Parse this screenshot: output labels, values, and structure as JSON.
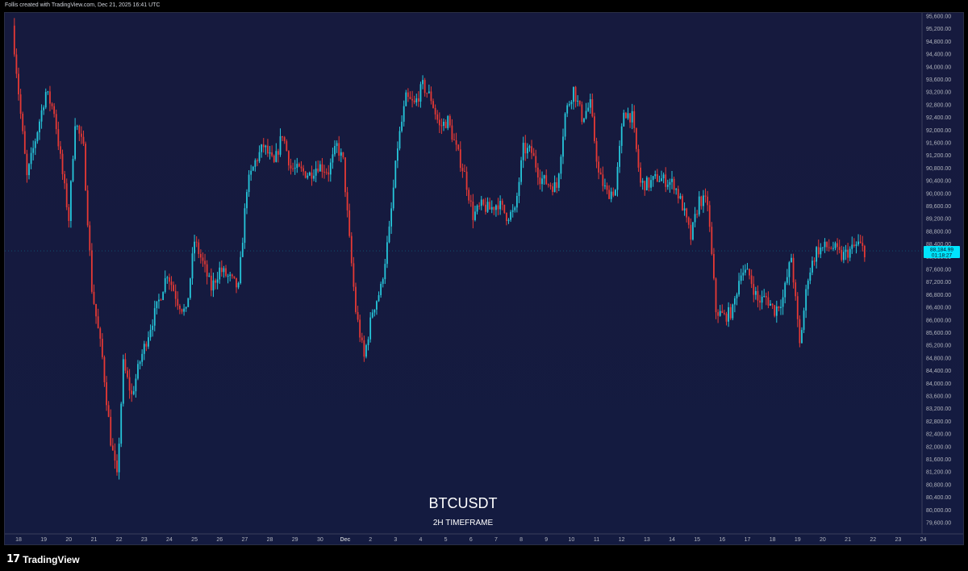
{
  "header": {
    "caption": "Follis created with TradingView.com, Dec 21, 2025 16:41 UTC"
  },
  "footer": {
    "brand": "TradingView",
    "brand_mark": "17"
  },
  "colors": {
    "bull": "#26c6da",
    "bear": "#e53935",
    "background": "#161a3e",
    "price_label": "#00e5ff"
  },
  "chart_data": {
    "type": "candlestick",
    "symbol": "BTCUSDT",
    "timeframe_label": "2H TIMEFRAME",
    "ylim": [
      79500,
      95900
    ],
    "y_ticks": [
      "95,600.00",
      "95,200.00",
      "94,800.00",
      "94,400.00",
      "94,000.00",
      "93,600.00",
      "93,200.00",
      "92,800.00",
      "92,400.00",
      "92,000.00",
      "91,600.00",
      "91,200.00",
      "90,800.00",
      "90,400.00",
      "90,000.00",
      "89,600.00",
      "89,200.00",
      "88,800.00",
      "88,400.00",
      "88,000.00",
      "87,600.00",
      "87,200.00",
      "86,800.00",
      "86,400.00",
      "86,000.00",
      "85,600.00",
      "85,200.00",
      "84,800.00",
      "84,400.00",
      "84,000.00",
      "83,600.00",
      "83,200.00",
      "82,800.00",
      "82,400.00",
      "82,000.00",
      "81,600.00",
      "81,200.00",
      "80,800.00",
      "80,400.00",
      "80,000.00",
      "79,600.00"
    ],
    "x_ticks": [
      "18",
      "19",
      "20",
      "21",
      "22",
      "23",
      "24",
      "25",
      "26",
      "27",
      "28",
      "29",
      "30",
      "Dec",
      "2",
      "3",
      "4",
      "5",
      "6",
      "7",
      "8",
      "9",
      "10",
      "11",
      "12",
      "13",
      "14",
      "15",
      "16",
      "17",
      "18",
      "19",
      "20",
      "21",
      "22",
      "23",
      "24"
    ],
    "x_tick_dates": [
      "Nov 18",
      "Nov 19",
      "Nov 20",
      "Nov 21",
      "Nov 22",
      "Nov 23",
      "Nov 24",
      "Nov 25",
      "Nov 26",
      "Nov 27",
      "Nov 28",
      "Nov 29",
      "Nov 30",
      "Dec 1",
      "Dec 2",
      "Dec 3",
      "Dec 4",
      "Dec 5",
      "Dec 6",
      "Dec 7",
      "Dec 8",
      "Dec 9",
      "Dec 10",
      "Dec 11",
      "Dec 12",
      "Dec 13",
      "Dec 14",
      "Dec 15",
      "Dec 16",
      "Dec 17",
      "Dec 18",
      "Dec 19",
      "Dec 20",
      "Dec 21",
      "Dec 22",
      "Dec 23",
      "Dec 24"
    ],
    "last_price": "88,184.99",
    "countdown": "01:18:27",
    "close_path": [
      [
        "Nov 17 18:00",
        95300
      ],
      [
        "Nov 18 02:00",
        92500
      ],
      [
        "Nov 18 08:00",
        90500
      ],
      [
        "Nov 18 16:00",
        91700
      ],
      [
        "Nov 19 02:00",
        93200
      ],
      [
        "Nov 19 10:00",
        92600
      ],
      [
        "Nov 19 18:00",
        90600
      ],
      [
        "Nov 20 00:00",
        89200
      ],
      [
        "Nov 20 06:00",
        92300
      ],
      [
        "Nov 20 14:00",
        91400
      ],
      [
        "Nov 20 22:00",
        87000
      ],
      [
        "Nov 21 08:00",
        84800
      ],
      [
        "Nov 21 16:00",
        82200
      ],
      [
        "Nov 21 22:00",
        81000
      ],
      [
        "Nov 22 04:00",
        84600
      ],
      [
        "Nov 22 12:00",
        83600
      ],
      [
        "Nov 22 20:00",
        84700
      ],
      [
        "Nov 23 06:00",
        85800
      ],
      [
        "Nov 23 14:00",
        86600
      ],
      [
        "Nov 23 22:00",
        87500
      ],
      [
        "Nov 24 08:00",
        86600
      ],
      [
        "Nov 24 16:00",
        86200
      ],
      [
        "Nov 25 00:00",
        88500
      ],
      [
        "Nov 25 08:00",
        87800
      ],
      [
        "Nov 25 16:00",
        87000
      ],
      [
        "Nov 26 00:00",
        87600
      ],
      [
        "Nov 26 10:00",
        87300
      ],
      [
        "Nov 26 18:00",
        87000
      ],
      [
        "Nov 27 02:00",
        90200
      ],
      [
        "Nov 27 10:00",
        91000
      ],
      [
        "Nov 27 18:00",
        91500
      ],
      [
        "Nov 28 04:00",
        90900
      ],
      [
        "Nov 28 12:00",
        91900
      ],
      [
        "Nov 28 20:00",
        90800
      ],
      [
        "Nov 29 06:00",
        90700
      ],
      [
        "Nov 29 14:00",
        90600
      ],
      [
        "Nov 29 22:00",
        90900
      ],
      [
        "Nov 30 08:00",
        90700
      ],
      [
        "Nov 30 16:00",
        91500
      ],
      [
        "Nov 30 22:00",
        91000
      ],
      [
        "Dec 1 04:00",
        88500
      ],
      [
        "Dec 1 10:00",
        86300
      ],
      [
        "Dec 1 18:00",
        84800
      ],
      [
        "Dec 2 02:00",
        86300
      ],
      [
        "Dec 2 10:00",
        87000
      ],
      [
        "Dec 2 18:00",
        88800
      ],
      [
        "Dec 3 02:00",
        91500
      ],
      [
        "Dec 3 10:00",
        93000
      ],
      [
        "Dec 3 18:00",
        92800
      ],
      [
        "Dec 4 02:00",
        93400
      ],
      [
        "Dec 4 10:00",
        93000
      ],
      [
        "Dec 4 18:00",
        92100
      ],
      [
        "Dec 5 02:00",
        92300
      ],
      [
        "Dec 5 10:00",
        91400
      ],
      [
        "Dec 5 18:00",
        90600
      ],
      [
        "Dec 6 02:00",
        89300
      ],
      [
        "Dec 6 10:00",
        89600
      ],
      [
        "Dec 6 18:00",
        89500
      ],
      [
        "Dec 7 02:00",
        89700
      ],
      [
        "Dec 7 10:00",
        89300
      ],
      [
        "Dec 7 18:00",
        89400
      ],
      [
        "Dec 8 02:00",
        91400
      ],
      [
        "Dec 8 10:00",
        91300
      ],
      [
        "Dec 8 18:00",
        90500
      ],
      [
        "Dec 9 02:00",
        90300
      ],
      [
        "Dec 9 10:00",
        90200
      ],
      [
        "Dec 9 18:00",
        92500
      ],
      [
        "Dec 10 02:00",
        93300
      ],
      [
        "Dec 10 10:00",
        92400
      ],
      [
        "Dec 10 18:00",
        92800
      ],
      [
        "Dec 11 02:00",
        90600
      ],
      [
        "Dec 11 10:00",
        90000
      ],
      [
        "Dec 11 18:00",
        90100
      ],
      [
        "Dec 12 02:00",
        92600
      ],
      [
        "Dec 12 10:00",
        92400
      ],
      [
        "Dec 12 18:00",
        90300
      ],
      [
        "Dec 13 02:00",
        90300
      ],
      [
        "Dec 13 10:00",
        90500
      ],
      [
        "Dec 13 18:00",
        90400
      ],
      [
        "Dec 14 02:00",
        90300
      ],
      [
        "Dec 14 10:00",
        89600
      ],
      [
        "Dec 14 18:00",
        88600
      ],
      [
        "Dec 15 02:00",
        89800
      ],
      [
        "Dec 15 10:00",
        89700
      ],
      [
        "Dec 15 18:00",
        86300
      ],
      [
        "Dec 16 02:00",
        86100
      ],
      [
        "Dec 16 10:00",
        86300
      ],
      [
        "Dec 16 18:00",
        87600
      ],
      [
        "Dec 17 02:00",
        87400
      ],
      [
        "Dec 17 10:00",
        86600
      ],
      [
        "Dec 17 18:00",
        86700
      ],
      [
        "Dec 18 02:00",
        86300
      ],
      [
        "Dec 18 10:00",
        86700
      ],
      [
        "Dec 18 18:00",
        88000
      ],
      [
        "Dec 19 02:00",
        85200
      ],
      [
        "Dec 19 10:00",
        87400
      ],
      [
        "Dec 19 18:00",
        88200
      ],
      [
        "Dec 20 02:00",
        88300
      ],
      [
        "Dec 20 10:00",
        88300
      ],
      [
        "Dec 20 18:00",
        88000
      ],
      [
        "Dec 21 02:00",
        88200
      ],
      [
        "Dec 21 10:00",
        88400
      ],
      [
        "Dec 21 16:00",
        88185
      ]
    ]
  }
}
